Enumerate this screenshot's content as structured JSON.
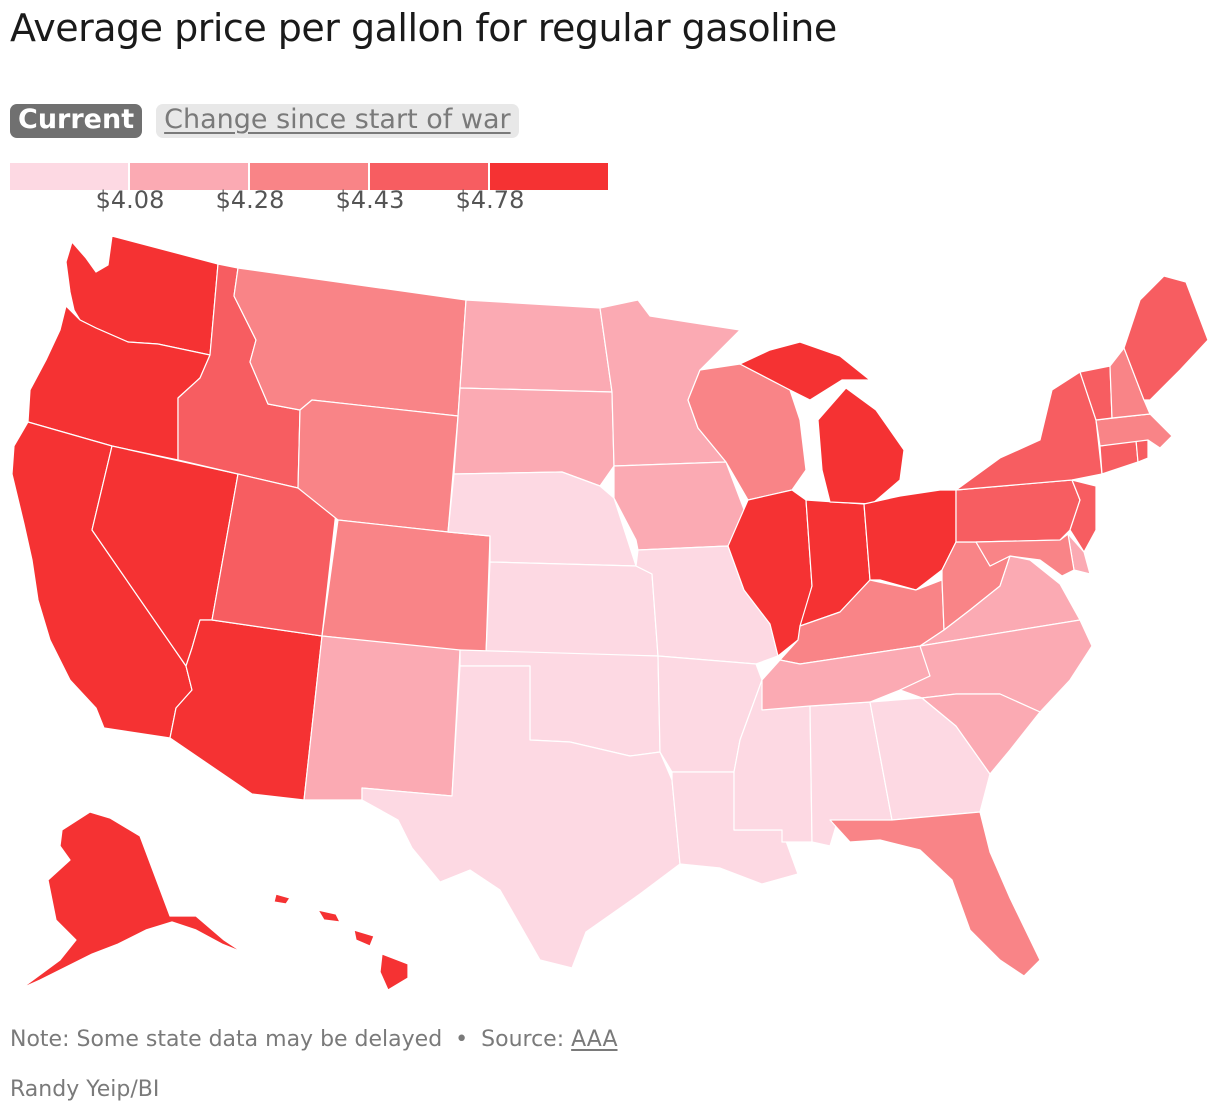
{
  "title": "Average price per gallon for regular gasoline",
  "toggles": [
    {
      "label": "Current",
      "active": true
    },
    {
      "label": "Change since start of war",
      "active": false
    }
  ],
  "legend": {
    "colors": [
      "#fdd9e3",
      "#fbaab3",
      "#f98487",
      "#f75d61",
      "#f53233"
    ],
    "thresholds": [
      "$4.08",
      "$4.28",
      "$4.43",
      "$4.78"
    ]
  },
  "map_data": {
    "bins": [
      "below $4.08",
      "$4.08–$4.28",
      "$4.28–$4.43",
      "$4.43–$4.78",
      "above $4.78"
    ],
    "states": {
      "WA": 4,
      "OR": 4,
      "CA": 4,
      "NV": 4,
      "AZ": 4,
      "AK": 4,
      "HI": 4,
      "ID": 3,
      "UT": 3,
      "MT": 2,
      "WY": 2,
      "CO": 2,
      "NM": 1,
      "ND": 1,
      "SD": 1,
      "MN": 1,
      "IA": 1,
      "NE": 0,
      "KS": 0,
      "OK": 0,
      "TX": 0,
      "MO": 0,
      "AR": 0,
      "LA": 0,
      "MS": 0,
      "AL": 0,
      "GA": 0,
      "WI": 2,
      "IL": 4,
      "IN": 4,
      "MI": 4,
      "OH": 4,
      "KY": 2,
      "TN": 1,
      "WV": 2,
      "VA": 1,
      "NC": 1,
      "SC": 1,
      "FL": 2,
      "PA": 3,
      "NY": 3,
      "NJ": 3,
      "MD": 2,
      "DE": 1,
      "VT": 3,
      "NH": 2,
      "ME": 3,
      "MA": 2,
      "CT": 3,
      "RI": 3
    }
  },
  "footnote": {
    "note": "Note: Some state data may be delayed",
    "separator": "•",
    "source_label": "Source:",
    "source_link": "AAA"
  },
  "credit": "Randy Yeip/BI"
}
